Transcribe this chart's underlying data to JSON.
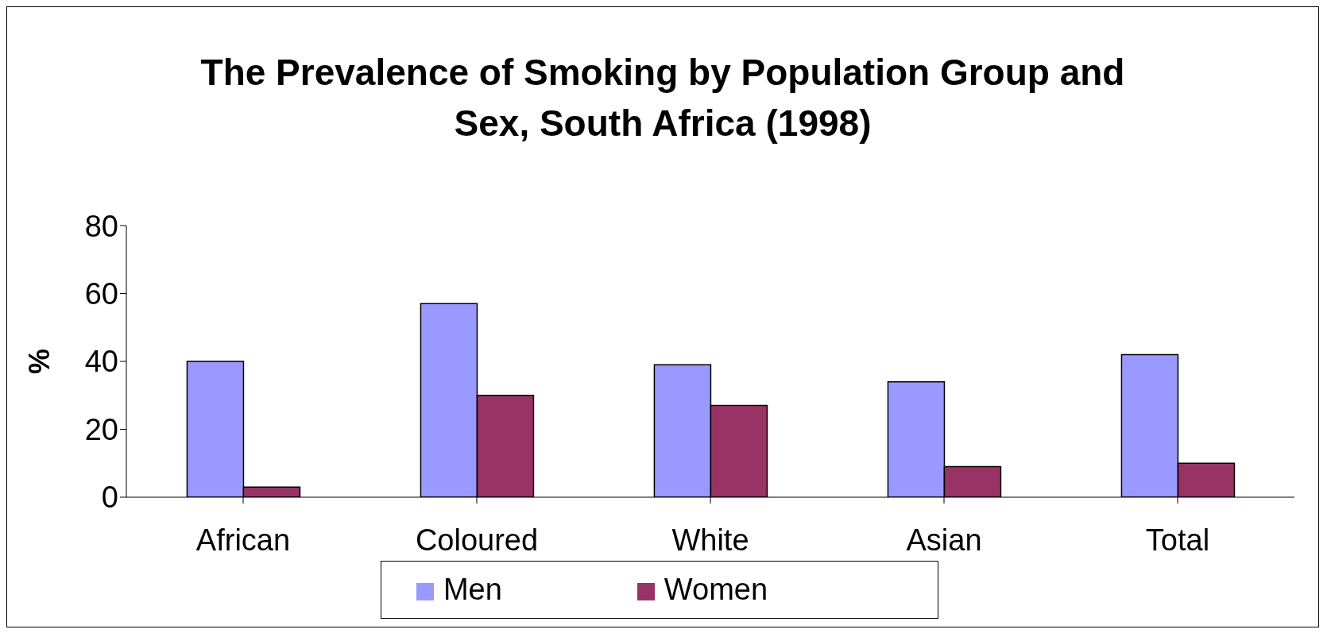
{
  "chart_data": {
    "type": "bar",
    "title": "The Prevalence of Smoking by Population Group and Sex, South Africa (1998)",
    "ylabel": "%",
    "categories": [
      "African",
      "Coloured",
      "White",
      "Asian",
      "Total"
    ],
    "series": [
      {
        "name": "Men",
        "color": "#9999ff",
        "values": [
          40,
          57,
          39,
          34,
          42
        ]
      },
      {
        "name": "Women",
        "color": "#993366",
        "values": [
          3,
          30,
          27,
          9,
          10
        ]
      }
    ],
    "ylim": [
      0,
      80
    ],
    "yticks": [
      0,
      20,
      40,
      60,
      80
    ],
    "grid": false,
    "legend": "bottom"
  }
}
